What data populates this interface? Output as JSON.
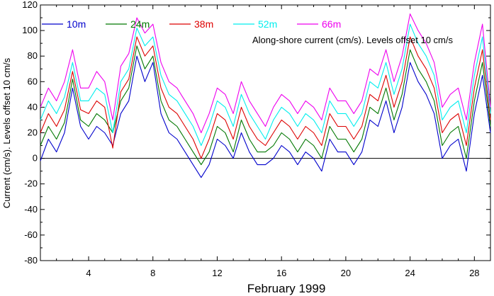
{
  "chart_data": {
    "type": "line",
    "title": "",
    "xlabel": "February 1999",
    "ylabel": "Current (cm/s). Levels offset 10 cm/s",
    "annotation": "Along-shore current (cm/s). Levels offset 10 cm/s",
    "xlim": [
      1,
      29
    ],
    "ylim": [
      -80,
      120
    ],
    "x_ticks": [
      4,
      8,
      12,
      16,
      20,
      24,
      28
    ],
    "y_ticks": [
      -80,
      -60,
      -40,
      -20,
      0,
      20,
      40,
      60,
      80,
      100,
      120
    ],
    "zero_line": 0,
    "grid": false,
    "legend_position": "top-left",
    "x": [
      1.0,
      1.5,
      2.0,
      2.5,
      3.0,
      3.5,
      4.0,
      4.5,
      5.0,
      5.5,
      6.0,
      6.5,
      7.0,
      7.5,
      8.0,
      8.5,
      9.0,
      9.5,
      10.0,
      10.5,
      11.0,
      11.5,
      12.0,
      12.5,
      13.0,
      13.5,
      14.0,
      14.5,
      15.0,
      15.5,
      16.0,
      16.5,
      17.0,
      17.5,
      18.0,
      18.5,
      19.0,
      19.5,
      20.0,
      20.5,
      21.0,
      21.5,
      22.0,
      22.5,
      23.0,
      23.5,
      24.0,
      24.5,
      25.0,
      25.5,
      26.0,
      26.5,
      27.0,
      27.5,
      28.0,
      28.5,
      29.0
    ],
    "series": [
      {
        "name": "10m",
        "color": "#0000cc",
        "values": [
          -2,
          15,
          5,
          20,
          55,
          25,
          15,
          25,
          20,
          10,
          35,
          45,
          80,
          60,
          75,
          35,
          20,
          15,
          5,
          -5,
          -15,
          -5,
          15,
          10,
          0,
          20,
          5,
          -5,
          -5,
          0,
          10,
          5,
          -5,
          5,
          0,
          -10,
          15,
          5,
          5,
          -5,
          5,
          30,
          25,
          45,
          20,
          40,
          75,
          60,
          50,
          35,
          0,
          10,
          15,
          -10,
          35,
          65,
          20
        ]
      },
      {
        "name": "24m",
        "color": "#007700",
        "values": [
          10,
          25,
          15,
          28,
          62,
          30,
          25,
          35,
          30,
          20,
          45,
          55,
          88,
          70,
          80,
          45,
          30,
          25,
          15,
          5,
          -5,
          5,
          25,
          20,
          5,
          30,
          15,
          5,
          5,
          10,
          20,
          15,
          5,
          15,
          10,
          0,
          25,
          15,
          15,
          5,
          15,
          40,
          35,
          55,
          30,
          50,
          85,
          70,
          60,
          45,
          10,
          20,
          25,
          0,
          45,
          75,
          25
        ]
      },
      {
        "name": "38m",
        "color": "#dd0000",
        "values": [
          20,
          35,
          25,
          38,
          68,
          38,
          35,
          45,
          40,
          8,
          52,
          62,
          95,
          80,
          88,
          55,
          40,
          35,
          25,
          15,
          0,
          15,
          35,
          30,
          15,
          40,
          25,
          15,
          10,
          20,
          30,
          25,
          15,
          25,
          20,
          10,
          35,
          25,
          25,
          15,
          25,
          50,
          45,
          65,
          40,
          60,
          95,
          80,
          70,
          55,
          20,
          30,
          35,
          10,
          55,
          85,
          30
        ]
      },
      {
        "name": "52m",
        "color": "#00eeee",
        "values": [
          30,
          45,
          35,
          48,
          75,
          45,
          45,
          55,
          50,
          20,
          60,
          70,
          102,
          88,
          95,
          65,
          50,
          45,
          35,
          25,
          10,
          25,
          45,
          40,
          25,
          50,
          35,
          25,
          15,
          30,
          40,
          35,
          25,
          35,
          30,
          20,
          45,
          35,
          35,
          25,
          35,
          60,
          55,
          75,
          50,
          70,
          105,
          90,
          80,
          65,
          30,
          40,
          45,
          20,
          65,
          95,
          35
        ]
      },
      {
        "name": "66m",
        "color": "#ee00ee",
        "values": [
          40,
          55,
          45,
          60,
          85,
          55,
          55,
          68,
          60,
          30,
          72,
          82,
          110,
          98,
          105,
          75,
          60,
          55,
          45,
          35,
          20,
          35,
          55,
          50,
          35,
          60,
          45,
          35,
          25,
          40,
          50,
          45,
          35,
          45,
          40,
          30,
          55,
          45,
          45,
          35,
          45,
          70,
          65,
          85,
          60,
          80,
          113,
          100,
          90,
          75,
          40,
          50,
          55,
          30,
          75,
          105,
          40
        ]
      }
    ]
  }
}
